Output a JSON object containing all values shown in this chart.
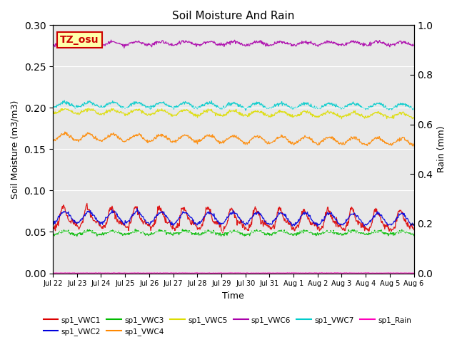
{
  "title": "Soil Moisture And Rain",
  "xlabel": "Time",
  "ylabel_left": "Soil Moisture (m3/m3)",
  "ylabel_right": "Rain (mm)",
  "ylim_left": [
    0.0,
    0.3
  ],
  "ylim_right": [
    0.0,
    1.0
  ],
  "yticks_left": [
    0.0,
    0.05,
    0.1,
    0.15,
    0.2,
    0.25,
    0.3
  ],
  "yticks_right_values": [
    0.0,
    0.2,
    0.4,
    0.6,
    0.8,
    1.0
  ],
  "annotation_text": "TZ_osu",
  "annotation_facecolor": "#FFFFAA",
  "annotation_edgecolor": "#CC0000",
  "annotation_textcolor": "#CC0000",
  "bg_color": "#E8E8E8",
  "series": {
    "sp1_VWC1": {
      "color": "#DD0000",
      "base": 0.063,
      "amp": 0.012,
      "period": 24,
      "trend": -0.004,
      "noise": 0.002,
      "sharp": true
    },
    "sp1_VWC2": {
      "color": "#0000DD",
      "base": 0.068,
      "amp": 0.007,
      "period": 24,
      "trend": -0.003,
      "noise": 0.001,
      "sharp": false
    },
    "sp1_VWC3": {
      "color": "#00BB00",
      "base": 0.049,
      "amp": 0.002,
      "period": 24,
      "trend": 0.0,
      "noise": 0.001,
      "sharp": false
    },
    "sp1_VWC4": {
      "color": "#FF8800",
      "base": 0.165,
      "amp": 0.004,
      "period": 24,
      "trend": -0.006,
      "noise": 0.001,
      "sharp": false
    },
    "sp1_VWC5": {
      "color": "#DDDD00",
      "base": 0.196,
      "amp": 0.003,
      "period": 24,
      "trend": -0.005,
      "noise": 0.001,
      "sharp": false
    },
    "sp1_VWC6": {
      "color": "#AA00AA",
      "base": 0.278,
      "amp": 0.002,
      "period": 24,
      "trend": 0.0,
      "noise": 0.001,
      "sharp": false
    },
    "sp1_VWC7": {
      "color": "#00CCCC",
      "base": 0.204,
      "amp": 0.003,
      "period": 24,
      "trend": -0.002,
      "noise": 0.001,
      "sharp": false
    },
    "sp1_Rain": {
      "color": "#FF00BB",
      "base": 0.0,
      "amp": 0.0,
      "period": 24,
      "trend": 0.0,
      "noise": 0.0,
      "sharp": false
    }
  },
  "legend_items": [
    {
      "label": "sp1_VWC1",
      "color": "#DD0000"
    },
    {
      "label": "sp1_VWC2",
      "color": "#0000DD"
    },
    {
      "label": "sp1_VWC3",
      "color": "#00BB00"
    },
    {
      "label": "sp1_VWC4",
      "color": "#FF8800"
    },
    {
      "label": "sp1_VWC5",
      "color": "#DDDD00"
    },
    {
      "label": "sp1_VWC6",
      "color": "#AA00AA"
    },
    {
      "label": "sp1_VWC7",
      "color": "#00CCCC"
    },
    {
      "label": "sp1_Rain",
      "color": "#FF00BB"
    }
  ]
}
